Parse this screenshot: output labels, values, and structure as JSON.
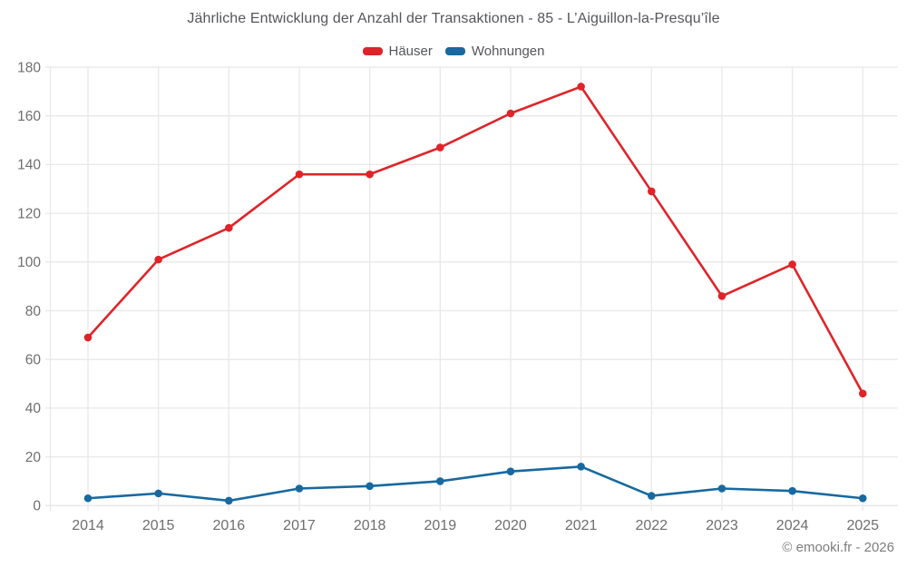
{
  "chart_data": {
    "type": "line",
    "title": "Jährliche Entwicklung der Anzahl der Transaktionen - 85 - L’Aiguillon-la-Presqu’île",
    "categories": [
      "2014",
      "2015",
      "2016",
      "2017",
      "2018",
      "2019",
      "2020",
      "2021",
      "2022",
      "2023",
      "2024",
      "2025"
    ],
    "series": [
      {
        "name": "Häuser",
        "color": "#df2429",
        "values": [
          69,
          101,
          114,
          136,
          136,
          147,
          161,
          172,
          129,
          86,
          99,
          46
        ]
      },
      {
        "name": "Wohnungen",
        "color": "#17699f",
        "values": [
          3,
          5,
          2,
          7,
          8,
          10,
          14,
          16,
          4,
          7,
          6,
          3
        ]
      }
    ],
    "ylim": [
      0,
      180
    ],
    "yticks": [
      0,
      20,
      40,
      60,
      80,
      100,
      120,
      140,
      160,
      180
    ],
    "grid": true,
    "legend_position": "top",
    "xlabel": "",
    "ylabel": ""
  },
  "legend": {
    "items": [
      {
        "label": "Häuser"
      },
      {
        "label": "Wohnungen"
      }
    ]
  },
  "footer": {
    "credit": "© emooki.fr - 2026"
  },
  "colors": {
    "grid": "#e8e8e8",
    "tick_text": "#6e6e6e",
    "title_text": "#55565a",
    "background": "#ffffff"
  }
}
